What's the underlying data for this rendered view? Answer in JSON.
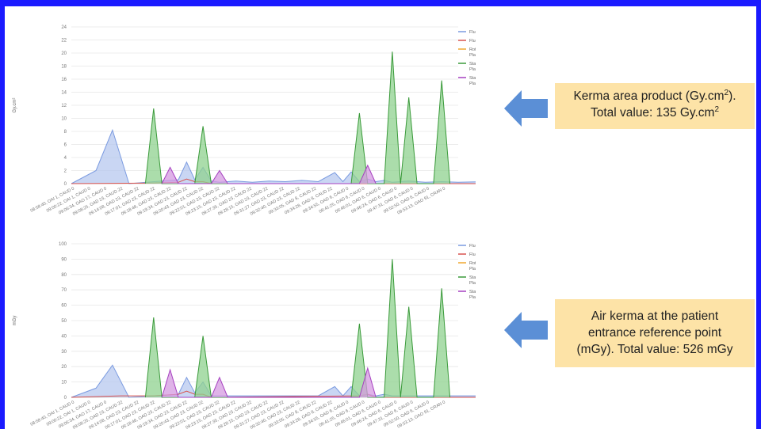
{
  "chart_data": [
    {
      "type": "area",
      "ylabel": "Gy.cm²",
      "ylim": [
        0,
        24
      ],
      "yticks": [
        0,
        2,
        4,
        6,
        8,
        10,
        12,
        14,
        16,
        18,
        20,
        22,
        24
      ],
      "categories": [
        "08:58:40, OAI 1, CAUD 0",
        "09:00:22, OAI 1, CAUD 0",
        "09:06:34, OAO 17, CAUD 0",
        "09:08:25, OAD 23, CAUD 22",
        "09:14:08, OAD 23, CAUD 22",
        "09:17:01, OAD 23, CAUD 22",
        "09:18:46, OAD 23, CAUD 22",
        "09:19:34, OAD 23, CAUD 22",
        "09:20:43, OAD 23, CAUD 22",
        "09:22:01, OAD 23, CAUD 22",
        "09:23:15, OAD 23, CAUD 22",
        "09:27:35, OAD 23, CAUD 22",
        "09:28:15, OAD 23, CAUD 22",
        "09:31:27, OAD 23, CAUD 22",
        "09:32:40, OAD 23, CAUD 22",
        "09:33:05, OAD 8, CAUD 22",
        "09:34:28, OAD 8, CAUD 22",
        "09:34:55, OAD 6, CAUD 0",
        "09:41:25, OAD 6, CAUD 0",
        "09:46:01, OAD 6, CAUD 0",
        "09:46:24, OAD 6, CAUD 0",
        "09:47:31, OAD 6, CAUD 0",
        "09:52:50, OAD 6, CAUD 0",
        "09:53:13, OAO 91, CRAN 0"
      ],
      "n_points": 47,
      "series": [
        {
          "name": "Fluoroscopy, Plane A",
          "color": "#7b9be0",
          "fill": "#b7c8ef",
          "points": [
            [
              0,
              0
            ],
            [
              3,
              2
            ],
            [
              5,
              8.2
            ],
            [
              7,
              0
            ],
            [
              13,
              0.6
            ],
            [
              14,
              3.3
            ],
            [
              15,
              0.6
            ],
            [
              16,
              2.5
            ],
            [
              17,
              0.4
            ],
            [
              18,
              0.2
            ],
            [
              20,
              0.4
            ],
            [
              22,
              0.2
            ],
            [
              24,
              0.4
            ],
            [
              26,
              0.3
            ],
            [
              28,
              0.5
            ],
            [
              30,
              0.3
            ],
            [
              32,
              1.7
            ],
            [
              33,
              0.3
            ],
            [
              34,
              1.8
            ],
            [
              35,
              0.3
            ],
            [
              36,
              0.7
            ],
            [
              37,
              0.3
            ],
            [
              38,
              0.5
            ],
            [
              39,
              0.2
            ],
            [
              41,
              0.4
            ],
            [
              43,
              0.2
            ],
            [
              45,
              0.3
            ],
            [
              47,
              0.2
            ],
            [
              50,
              0.3
            ],
            [
              52,
              2.6
            ],
            [
              54,
              0.3
            ],
            [
              56,
              0.1
            ],
            [
              58,
              0
            ]
          ]
        },
        {
          "name": "Fluoroscopy, Plane B",
          "color": "#d9534f",
          "fill": "none",
          "points": [
            [
              0,
              0
            ],
            [
              10,
              0.1
            ],
            [
              13,
              0.2
            ],
            [
              14,
              0.7
            ],
            [
              15,
              0.3
            ],
            [
              16,
              0.3
            ],
            [
              17,
              0
            ],
            [
              58,
              0
            ]
          ]
        },
        {
          "name": "Rotational Acquisition, Plane A",
          "color": "#f0a830",
          "fill": "#f7cf8b",
          "points": [
            [
              56,
              0
            ],
            [
              57,
              0
            ],
            [
              58,
              23
            ]
          ]
        },
        {
          "name": "Stationary Acquisition, Plane A",
          "color": "#3a9a3a",
          "fill": "#8fd18f",
          "points": [
            [
              9,
              0
            ],
            [
              10,
              11.5
            ],
            [
              11,
              0
            ],
            [
              15,
              0
            ],
            [
              16,
              8.8
            ],
            [
              17,
              0
            ],
            [
              34,
              0
            ],
            [
              35,
              10.8
            ],
            [
              36,
              0
            ],
            [
              38,
              0
            ],
            [
              39,
              20.2
            ],
            [
              40,
              0
            ],
            [
              41,
              13.2
            ],
            [
              42,
              0
            ],
            [
              44,
              0
            ],
            [
              45,
              15.8
            ],
            [
              46,
              0
            ]
          ]
        },
        {
          "name": "Stationary Acquisition, Plane B",
          "color": "#a640c0",
          "fill": "#d49ae0",
          "points": [
            [
              11,
              0
            ],
            [
              12,
              2.5
            ],
            [
              13,
              0
            ],
            [
              17,
              0
            ],
            [
              18,
              2
            ],
            [
              19,
              0
            ],
            [
              35,
              0
            ],
            [
              36,
              2.8
            ],
            [
              37,
              0
            ]
          ]
        }
      ],
      "legend": {
        "position": "top-right",
        "entries": [
          "Fluoroscopy, Plane A",
          "Fluoroscopy, Plane B",
          "Rotational Acquisition, Plane A",
          "Stationary Acquisition, Plane A",
          "Stationary Acquisition, Plane B"
        ]
      },
      "grid": true
    },
    {
      "type": "area",
      "ylabel": "mGy",
      "ylim": [
        0,
        100
      ],
      "yticks": [
        0,
        10,
        20,
        30,
        40,
        50,
        60,
        70,
        80,
        90,
        100
      ],
      "categories": [
        "08:58:40, OAI 1, CAUD 0",
        "09:00:22, OAI 1, CAUD 0",
        "09:06:34, OAO 17, CAUD 0",
        "09:08:25, OAD 23, CAUD 22",
        "09:14:08, OAD 23, CAUD 22",
        "09:17:01, OAD 23, CAUD 22",
        "09:18:46, OAD 23, CAUD 22",
        "09:19:34, OAD 23, CAUD 22",
        "09:20:43, OAD 23, CAUD 22",
        "09:22:01, OAD 23, CAUD 22",
        "09:23:15, OAD 23, CAUD 22",
        "09:27:35, OAD 23, CAUD 22",
        "09:28:15, OAD 23, CAUD 22",
        "09:31:27, OAD 23, CAUD 22",
        "09:32:40, OAD 23, CAUD 22",
        "09:33:05, OAD 8, CAUD 22",
        "09:34:28, OAD 8, CAUD 22",
        "09:34:55, OAD 6, CAUD 0",
        "09:41:25, OAD 6, CAUD 0",
        "09:46:01, OAD 6, CAUD 0",
        "09:46:24, OAD 6, CAUD 0",
        "09:47:31, OAD 6, CAUD 0",
        "09:52:50, OAD 6, CAUD 0",
        "09:53:13, OAO 91, CRAN 0"
      ],
      "n_points": 47,
      "series": [
        {
          "name": "Fluoroscopy, Plane A",
          "color": "#7b9be0",
          "fill": "#b7c8ef",
          "points": [
            [
              0,
              0
            ],
            [
              3,
              6
            ],
            [
              5,
              21
            ],
            [
              7,
              0
            ],
            [
              13,
              2
            ],
            [
              14,
              13
            ],
            [
              15,
              3
            ],
            [
              16,
              10
            ],
            [
              17,
              1
            ],
            [
              18,
              1
            ],
            [
              20,
              1
            ],
            [
              22,
              1
            ],
            [
              24,
              1
            ],
            [
              26,
              1
            ],
            [
              28,
              1
            ],
            [
              30,
              1
            ],
            [
              32,
              7
            ],
            [
              33,
              1
            ],
            [
              34,
              7
            ],
            [
              35,
              1
            ],
            [
              36,
              2
            ],
            [
              37,
              1
            ],
            [
              38,
              2
            ],
            [
              39,
              1
            ],
            [
              41,
              1
            ],
            [
              43,
              1
            ],
            [
              45,
              1
            ],
            [
              47,
              1
            ],
            [
              50,
              1
            ],
            [
              52,
              10
            ],
            [
              54,
              1
            ],
            [
              56,
              0
            ],
            [
              58,
              0
            ]
          ]
        },
        {
          "name": "Fluoroscopy, Plane B",
          "color": "#d9534f",
          "fill": "none",
          "points": [
            [
              0,
              0
            ],
            [
              6,
              1
            ],
            [
              8,
              1
            ],
            [
              10,
              1
            ],
            [
              13,
              2
            ],
            [
              14,
              4
            ],
            [
              15,
              2
            ],
            [
              16,
              2
            ],
            [
              17,
              0
            ],
            [
              35,
              1
            ],
            [
              36,
              2
            ],
            [
              37,
              0
            ],
            [
              58,
              0
            ]
          ]
        },
        {
          "name": "Rotational Acquisition, Plane A",
          "color": "#f0a830",
          "fill": "#f7cf8b",
          "points": [
            [
              56,
              0
            ],
            [
              57,
              0
            ],
            [
              58,
              58
            ]
          ]
        },
        {
          "name": "Stationary Acquisition, Plane A",
          "color": "#3a9a3a",
          "fill": "#8fd18f",
          "points": [
            [
              9,
              0
            ],
            [
              10,
              52
            ],
            [
              11,
              0
            ],
            [
              15,
              0
            ],
            [
              16,
              40
            ],
            [
              17,
              0
            ],
            [
              34,
              0
            ],
            [
              35,
              48
            ],
            [
              36,
              0
            ],
            [
              38,
              0
            ],
            [
              39,
              90
            ],
            [
              40,
              0
            ],
            [
              41,
              59
            ],
            [
              42,
              0
            ],
            [
              44,
              0
            ],
            [
              45,
              71
            ],
            [
              46,
              0
            ]
          ]
        },
        {
          "name": "Stationary Acquisition, Plane B",
          "color": "#a640c0",
          "fill": "#d49ae0",
          "points": [
            [
              11,
              0
            ],
            [
              12,
              18
            ],
            [
              13,
              0
            ],
            [
              17,
              0
            ],
            [
              18,
              13
            ],
            [
              19,
              0
            ],
            [
              35,
              0
            ],
            [
              36,
              19
            ],
            [
              37,
              0
            ]
          ]
        }
      ],
      "legend": {
        "position": "top-right",
        "entries": [
          "Fluoroscopy, Plane A",
          "Fluoroscopy, Plane B",
          "Rotational Acquisition, Plane A",
          "Stationary Acquisition, Plane A",
          "Stationary Acquisition, Plane B"
        ]
      },
      "grid": true
    }
  ],
  "annotations": {
    "top": {
      "line1_pre": "Kerma area product (Gy.cm",
      "line1_sup": "2",
      "line1_post": ").",
      "line2_pre": "Total value: 135 Gy.cm",
      "line2_sup": "2"
    },
    "bottom": {
      "line1": "Air kerma at the patient",
      "line2": "entrance reference point",
      "line3": "(mGy). Total value: 526 mGy"
    }
  },
  "colors": {
    "border": "#1a1aff",
    "annotation_bg": "#fde3a7",
    "arrow": "#5b8fd6"
  }
}
